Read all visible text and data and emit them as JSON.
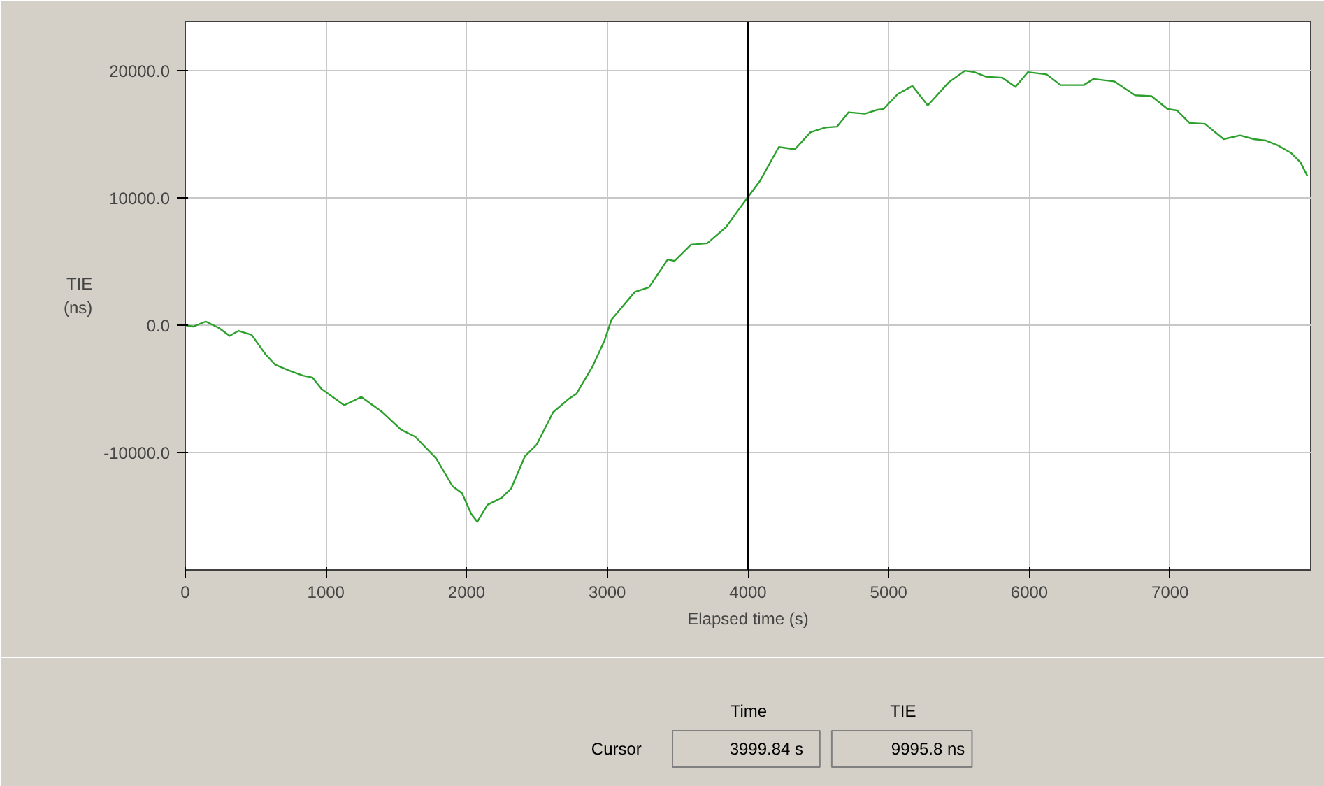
{
  "chart_data": {
    "type": "line",
    "xlabel": "Elapsed time (s)",
    "ylabel": "TIE\n(ns)",
    "xlim": [
      0,
      8000
    ],
    "ylim": [
      -19230,
      23850
    ],
    "xticks": [
      0,
      1000,
      2000,
      3000,
      4000,
      5000,
      6000,
      7000
    ],
    "yticks": [
      {
        "value": -10000,
        "label": "-10000.0"
      },
      {
        "value": 0,
        "label": "0.0"
      },
      {
        "value": 10000,
        "label": "10000.0"
      },
      {
        "value": 20000,
        "label": "20000.0"
      }
    ],
    "grid": true,
    "marker": "none",
    "line_style": "solid",
    "ref_lines": [
      {
        "axis": "x",
        "value": 4000,
        "color": "#000000"
      }
    ],
    "annotations": [
      "Time",
      "TIE",
      "Cursor",
      "3999.84 s",
      "9995.8 ns"
    ],
    "x": [
      0,
      56,
      146,
      239,
      316,
      379,
      472,
      571,
      638,
      738,
      837,
      904,
      970,
      1130,
      1252,
      1402,
      1535,
      1635,
      1784,
      1900,
      1967,
      2033,
      2076,
      2149,
      2249,
      2316,
      2415,
      2498,
      2615,
      2731,
      2781,
      2897,
      2980,
      3030,
      3113,
      3196,
      3296,
      3429,
      3478,
      3595,
      3711,
      3844,
      3927,
      4000,
      4086,
      4219,
      4334,
      4444,
      4550,
      4632,
      4715,
      4831,
      4914,
      4964,
      5063,
      5169,
      5278,
      5427,
      5543,
      5609,
      5692,
      5808,
      5901,
      5990,
      6123,
      6222,
      6387,
      6454,
      6603,
      6752,
      6868,
      6983,
      7050,
      7139,
      7248,
      7381,
      7497,
      7596,
      7679,
      7762,
      7861,
      7927,
      7977
    ],
    "series": [
      {
        "color": "#2ca02c",
        "values": [
          0,
          -110,
          290,
          -220,
          -840,
          -440,
          -760,
          -2290,
          -3090,
          -3560,
          -3960,
          -4110,
          -5020,
          -6290,
          -5640,
          -6840,
          -8220,
          -8760,
          -10470,
          -12650,
          -13200,
          -14840,
          -15450,
          -14110,
          -13560,
          -12840,
          -10290,
          -9380,
          -6840,
          -5750,
          -5380,
          -3200,
          -1200,
          440,
          1530,
          2620,
          2980,
          5160,
          5050,
          6330,
          6440,
          7710,
          8980,
          10070,
          11350,
          14000,
          13820,
          15160,
          15530,
          15600,
          16730,
          16620,
          16910,
          16980,
          18150,
          18800,
          17270,
          19090,
          20000,
          19890,
          19530,
          19450,
          18730,
          19890,
          19710,
          18870,
          18870,
          19350,
          19160,
          18070,
          18000,
          16980,
          16870,
          15890,
          15820,
          14620,
          14910,
          14620,
          14510,
          14150,
          13530,
          12800,
          11710
        ]
      }
    ]
  }
}
